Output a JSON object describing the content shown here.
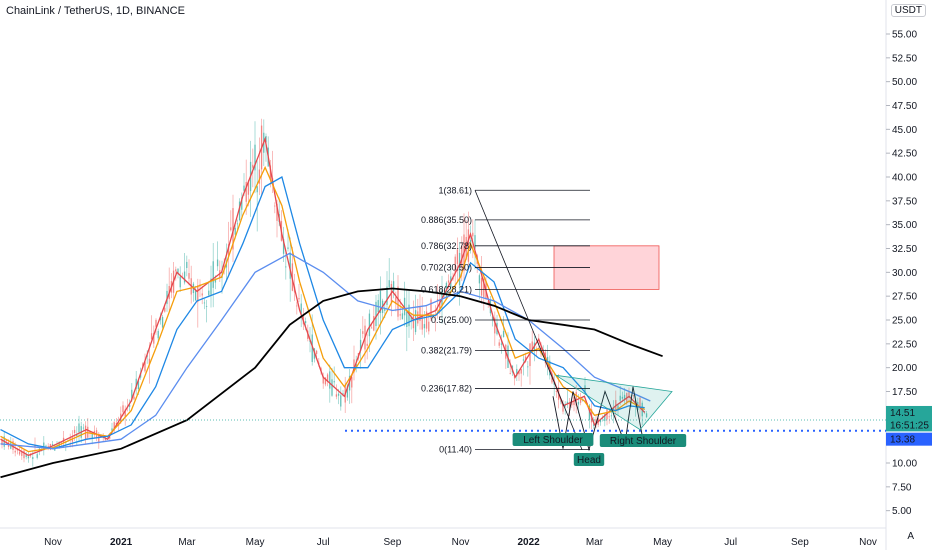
{
  "header": {
    "title": "ChainLink / TetherUS, 1D, BINANCE",
    "unit_label": "USDT",
    "scale_button": "A"
  },
  "chart_data": {
    "type": "line",
    "title": "ChainLink / TetherUS, 1D, BINANCE",
    "ylim": [
      2.5,
      56
    ],
    "y_ticks": [
      "55.00",
      "52.50",
      "50.00",
      "47.50",
      "45.00",
      "42.50",
      "40.00",
      "37.50",
      "35.00",
      "32.50",
      "30.00",
      "27.50",
      "25.00",
      "22.50",
      "20.00",
      "17.50",
      "15.00",
      "12.50",
      "10.00",
      "7.50",
      "5.00"
    ],
    "y_tick_values": [
      55,
      52.5,
      50,
      47.5,
      45,
      42.5,
      40,
      37.5,
      35,
      32.5,
      30,
      27.5,
      25,
      22.5,
      20,
      17.5,
      15,
      12.5,
      10,
      7.5,
      5
    ],
    "x_ticks": [
      "Nov",
      "2021",
      "Mar",
      "May",
      "Jul",
      "Sep",
      "Nov",
      "2022",
      "Mar",
      "May",
      "Jul",
      "Sep",
      "Nov"
    ],
    "x_tick_values": [
      "2020-11-01",
      "2021-01-01",
      "2021-03-01",
      "2021-05-01",
      "2021-07-01",
      "2021-09-01",
      "2021-11-01",
      "2022-01-01",
      "2022-03-01",
      "2022-05-01",
      "2022-07-01",
      "2022-09-01",
      "2022-11-01"
    ],
    "x_range": [
      "2020-09-15",
      "2022-12-20"
    ],
    "series": [
      {
        "color": "#e5484d",
        "x": [
          "2020-09-15",
          "2020-10-10",
          "2020-11-01",
          "2020-12-01",
          "2020-12-20",
          "2021-01-10",
          "2021-02-01",
          "2021-02-20",
          "2021-03-10",
          "2021-04-01",
          "2021-04-20",
          "2021-05-10",
          "2021-05-25",
          "2021-06-10",
          "2021-07-01",
          "2021-07-20",
          "2021-08-10",
          "2021-09-01",
          "2021-09-20",
          "2021-10-10",
          "2021-11-01",
          "2021-11-10",
          "2021-12-01",
          "2021-12-20",
          "2022-01-10",
          "2022-02-01",
          "2022-02-20",
          "2022-03-01",
          "2022-03-20",
          "2022-04-01",
          "2022-04-15"
        ],
        "y": [
          12.5,
          10.8,
          11.8,
          13.5,
          12.5,
          16.5,
          24,
          30,
          28,
          30,
          38,
          44,
          34,
          26,
          19,
          17,
          24,
          28,
          25,
          26,
          31,
          34,
          25,
          19,
          23,
          16,
          17,
          14,
          16,
          17,
          15.3
        ]
      },
      {
        "color": "#f59e0b",
        "x": [
          "2020-09-15",
          "2020-10-10",
          "2020-11-01",
          "2020-12-01",
          "2020-12-20",
          "2021-01-10",
          "2021-02-01",
          "2021-02-20",
          "2021-03-10",
          "2021-04-01",
          "2021-04-20",
          "2021-05-10",
          "2021-05-25",
          "2021-06-10",
          "2021-07-01",
          "2021-07-20",
          "2021-08-10",
          "2021-09-01",
          "2021-09-20",
          "2021-10-10",
          "2021-11-01",
          "2021-11-10",
          "2021-12-01",
          "2021-12-20",
          "2022-01-10",
          "2022-02-01",
          "2022-02-20",
          "2022-03-01",
          "2022-03-20",
          "2022-04-01",
          "2022-04-15"
        ],
        "y": [
          12.8,
          11.2,
          11.6,
          13.2,
          12.8,
          15.5,
          22,
          28,
          28.5,
          29.5,
          36,
          41,
          37,
          29,
          21,
          18,
          22,
          27,
          25.5,
          25.5,
          29.5,
          33,
          27,
          21,
          22,
          18,
          16.5,
          15,
          15.5,
          16.5,
          15.6
        ]
      },
      {
        "color": "#1e88e5",
        "x": [
          "2020-09-15",
          "2020-10-10",
          "2020-11-01",
          "2020-12-01",
          "2020-12-20",
          "2021-01-10",
          "2021-02-01",
          "2021-02-20",
          "2021-03-10",
          "2021-04-01",
          "2021-04-20",
          "2021-05-10",
          "2021-05-25",
          "2021-06-10",
          "2021-07-01",
          "2021-07-20",
          "2021-08-10",
          "2021-09-01",
          "2021-09-20",
          "2021-10-10",
          "2021-11-01",
          "2021-11-10",
          "2021-12-01",
          "2021-12-20",
          "2022-01-10",
          "2022-02-01",
          "2022-02-20",
          "2022-03-01",
          "2022-03-20",
          "2022-04-01",
          "2022-04-15"
        ],
        "y": [
          13.5,
          12,
          11.5,
          12.5,
          12.8,
          14,
          18,
          24,
          27,
          28,
          33,
          39,
          40,
          33,
          25,
          20,
          20,
          24,
          25,
          25.5,
          28,
          31,
          29,
          23,
          21,
          20,
          17.5,
          16,
          15.5,
          16,
          15.8
        ]
      },
      {
        "color": "#5b8def",
        "x": [
          "2020-09-15",
          "2020-11-01",
          "2021-01-01",
          "2021-02-01",
          "2021-03-01",
          "2021-04-01",
          "2021-05-01",
          "2021-06-01",
          "2021-07-01",
          "2021-08-01",
          "2021-09-01",
          "2021-10-01",
          "2021-11-01",
          "2021-12-01",
          "2022-01-01",
          "2022-02-01",
          "2022-03-01",
          "2022-04-01",
          "2022-04-20"
        ],
        "y": [
          12,
          11.5,
          12.5,
          15,
          20,
          25,
          30,
          32,
          30,
          27,
          26,
          26.5,
          28,
          27,
          25,
          22,
          19,
          17.5,
          16.5
        ]
      },
      {
        "color": "#000000",
        "x": [
          "2020-09-15",
          "2020-11-01",
          "2021-01-01",
          "2021-03-01",
          "2021-05-01",
          "2021-06-01",
          "2021-07-01",
          "2021-08-01",
          "2021-09-01",
          "2021-10-01",
          "2021-11-01",
          "2021-12-01",
          "2022-01-01",
          "2022-02-01",
          "2022-03-01",
          "2022-04-01",
          "2022-05-01"
        ],
        "y": [
          8.5,
          10,
          11.5,
          14.5,
          20,
          24.5,
          27,
          28,
          28.3,
          28,
          27.5,
          26.5,
          25,
          24.5,
          24,
          22.5,
          21.2
        ]
      }
    ],
    "annotations": {
      "fib_levels": [
        {
          "label": "1(38.61)",
          "value": 38.61
        },
        {
          "label": "0.886(35.50)",
          "value": 35.5
        },
        {
          "label": "0.786(32.78)",
          "value": 32.78
        },
        {
          "label": "0.702(30.50)",
          "value": 30.5
        },
        {
          "label": "0.618(28.21)",
          "value": 28.21
        },
        {
          "label": "0.5(25.00)",
          "value": 25.0
        },
        {
          "label": "0.382(21.79)",
          "value": 21.79
        },
        {
          "label": "0.236(17.82)",
          "value": 17.82
        },
        {
          "label": "0(11.40)",
          "value": 11.4
        }
      ],
      "patterns": [
        {
          "label": "Left Shoulder"
        },
        {
          "label": "Head"
        },
        {
          "label": "Right Shoulder"
        }
      ],
      "price_labels": [
        {
          "text": "14.51",
          "color": "#26a69a"
        },
        {
          "text": "16:51:25",
          "color": "#26a69a"
        },
        {
          "text": "13.38",
          "color": "#2962ff"
        }
      ],
      "colors": {
        "zone_fill": "#ffcdd2",
        "zone_stroke": "#ef5350",
        "triangle": "#26a69a",
        "support_line": "#2962ff"
      }
    }
  }
}
